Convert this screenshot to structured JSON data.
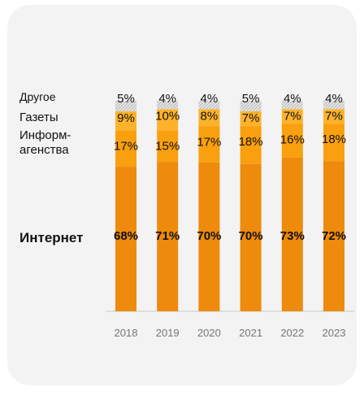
{
  "chart_data": {
    "type": "bar",
    "stacked": true,
    "normalized": true,
    "categories": [
      "2018",
      "2019",
      "2020",
      "2021",
      "2022",
      "2023"
    ],
    "series": [
      {
        "name": "Интернет",
        "values": [
          68,
          71,
          70,
          70,
          73,
          72
        ],
        "value_labels": [
          "68%",
          "71%",
          "70%",
          "70%",
          "73%",
          "72%"
        ],
        "color": "#ee8a0c",
        "label_bold": true
      },
      {
        "name": "Информ-агенства",
        "values": [
          17,
          15,
          17,
          18,
          16,
          18
        ],
        "value_labels": [
          "17%",
          "15%",
          "17%",
          "18%",
          "16%",
          "18%"
        ],
        "color": "#fa9f0e"
      },
      {
        "name": "Газеты",
        "values": [
          9,
          10,
          8,
          7,
          7,
          7
        ],
        "value_labels": [
          "9%",
          "10%",
          "8%",
          "7%",
          "7%",
          "7%"
        ],
        "color": "#fcb22a"
      },
      {
        "name": "Другое",
        "values": [
          5,
          4,
          4,
          5,
          4,
          4
        ],
        "value_labels": [
          "5%",
          "4%",
          "4%",
          "5%",
          "4%",
          "4%"
        ],
        "color": "#d8d8d8",
        "pattern": "hatched"
      }
    ],
    "ylim": [
      0,
      100
    ],
    "grid": false,
    "legend": "left, as category labels beside the bars"
  },
  "legend_labels": {
    "other": "Другое",
    "newspapers": "Газеты",
    "agencies_line1": "Информ-",
    "agencies_line2": "агенства",
    "internet": "Интернет"
  }
}
